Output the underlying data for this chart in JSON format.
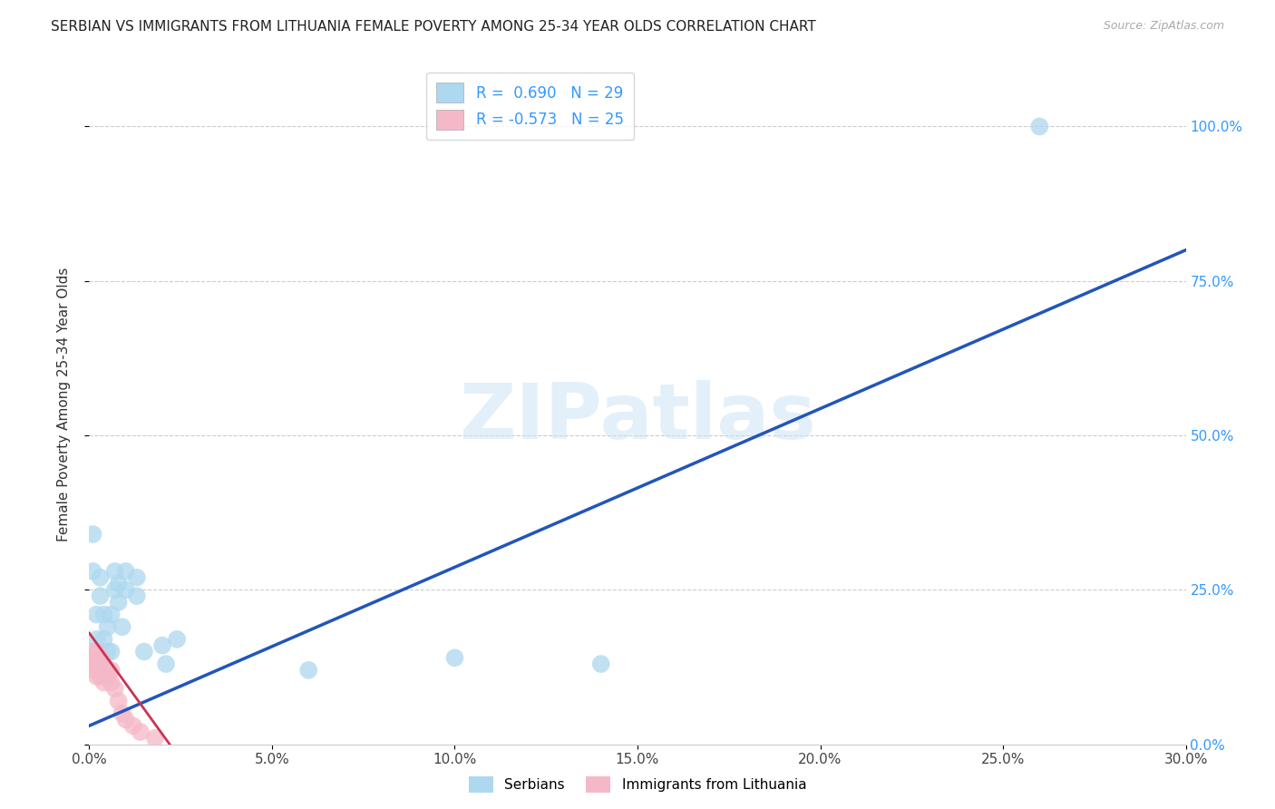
{
  "title": "SERBIAN VS IMMIGRANTS FROM LITHUANIA FEMALE POVERTY AMONG 25-34 YEAR OLDS CORRELATION CHART",
  "source": "Source: ZipAtlas.com",
  "ylabel": "Female Poverty Among 25-34 Year Olds",
  "ylabel_ticks": [
    "0.0%",
    "25.0%",
    "50.0%",
    "75.0%",
    "100.0%"
  ],
  "xlabel_ticks": [
    "0.0%",
    "5.0%",
    "10.0%",
    "15.0%",
    "20.0%",
    "25.0%",
    "30.0%"
  ],
  "xlim": [
    0.0,
    0.3
  ],
  "ylim": [
    0.0,
    1.1
  ],
  "legend_r_serbian": "0.690",
  "legend_n_serbian": 29,
  "legend_r_lithuania": "-0.573",
  "legend_n_lithuania": 25,
  "serbian_color": "#add8f0",
  "lithuania_color": "#f5b8c8",
  "serbian_line_color": "#2255bb",
  "lithuania_line_color": "#cc3355",
  "serbia_line_x0": 0.0,
  "serbia_line_y0": 0.03,
  "serbia_line_x1": 0.3,
  "serbia_line_y1": 0.8,
  "lith_line_x0": 0.0,
  "lith_line_y0": 0.18,
  "lith_line_x1": 0.022,
  "lith_line_y1": 0.0,
  "serbian_scatter": [
    [
      0.001,
      0.34
    ],
    [
      0.001,
      0.28
    ],
    [
      0.002,
      0.21
    ],
    [
      0.002,
      0.17
    ],
    [
      0.003,
      0.27
    ],
    [
      0.003,
      0.24
    ],
    [
      0.004,
      0.21
    ],
    [
      0.004,
      0.17
    ],
    [
      0.005,
      0.19
    ],
    [
      0.005,
      0.15
    ],
    [
      0.006,
      0.21
    ],
    [
      0.006,
      0.15
    ],
    [
      0.007,
      0.28
    ],
    [
      0.007,
      0.25
    ],
    [
      0.008,
      0.26
    ],
    [
      0.008,
      0.23
    ],
    [
      0.009,
      0.19
    ],
    [
      0.01,
      0.28
    ],
    [
      0.01,
      0.25
    ],
    [
      0.013,
      0.27
    ],
    [
      0.013,
      0.24
    ],
    [
      0.015,
      0.15
    ],
    [
      0.02,
      0.16
    ],
    [
      0.021,
      0.13
    ],
    [
      0.024,
      0.17
    ],
    [
      0.06,
      0.12
    ],
    [
      0.1,
      0.14
    ],
    [
      0.14,
      0.13
    ],
    [
      0.26,
      1.0
    ]
  ],
  "lithuania_scatter": [
    [
      0.001,
      0.15
    ],
    [
      0.001,
      0.14
    ],
    [
      0.001,
      0.13
    ],
    [
      0.001,
      0.12
    ],
    [
      0.002,
      0.15
    ],
    [
      0.002,
      0.13
    ],
    [
      0.002,
      0.12
    ],
    [
      0.002,
      0.11
    ],
    [
      0.003,
      0.14
    ],
    [
      0.003,
      0.12
    ],
    [
      0.003,
      0.11
    ],
    [
      0.004,
      0.13
    ],
    [
      0.004,
      0.11
    ],
    [
      0.004,
      0.1
    ],
    [
      0.005,
      0.12
    ],
    [
      0.005,
      0.11
    ],
    [
      0.006,
      0.12
    ],
    [
      0.006,
      0.1
    ],
    [
      0.007,
      0.09
    ],
    [
      0.008,
      0.07
    ],
    [
      0.009,
      0.05
    ],
    [
      0.01,
      0.04
    ],
    [
      0.012,
      0.03
    ],
    [
      0.014,
      0.02
    ],
    [
      0.018,
      0.01
    ]
  ],
  "watermark_text": "ZIPatlas",
  "background_color": "#ffffff",
  "grid_color": "#cccccc"
}
